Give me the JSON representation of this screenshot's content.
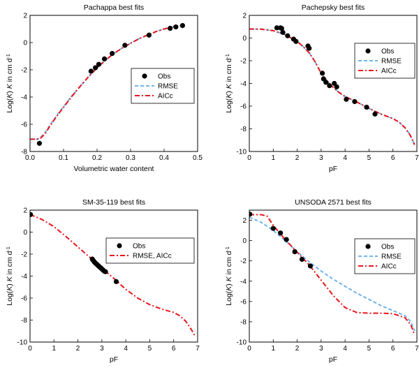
{
  "colors": {
    "obs": "#000000",
    "rmse": "#6fb4ec",
    "aicc": "#e8141b",
    "axis": "#000000"
  },
  "chart_data": [
    {
      "type": "scatter",
      "title": "Pachappa best fits",
      "xlabel": "Volumetric water content",
      "ylabel_parts": [
        "Log(",
        "K",
        ") ",
        "K",
        " in cm d",
        "-1"
      ],
      "xlim": [
        0,
        0.5
      ],
      "ylim": [
        -8,
        2
      ],
      "xticks": [
        0,
        0.1,
        0.2,
        0.3,
        0.4,
        0.5
      ],
      "xtick_labels": [
        "0.0",
        "0.1",
        "0.2",
        "0.3",
        "0.4",
        "0.5"
      ],
      "yticks": [
        -8,
        -6,
        -4,
        -2,
        0,
        2
      ],
      "ytick_labels": [
        "-8",
        "-6",
        "-4",
        "-2",
        "0",
        "2"
      ],
      "legend": {
        "position": "center-right",
        "entries": [
          "Obs",
          "RMSE",
          "AICc"
        ]
      },
      "series": [
        {
          "name": "Obs",
          "kind": "points",
          "x": [
            0.028,
            0.182,
            0.195,
            0.205,
            0.222,
            0.245,
            0.283,
            0.355,
            0.418,
            0.435,
            0.455
          ],
          "y": [
            -7.4,
            -2.1,
            -1.85,
            -1.6,
            -1.2,
            -0.8,
            -0.2,
            0.55,
            1.05,
            1.15,
            1.25
          ]
        },
        {
          "name": "RMSE",
          "kind": "dashed",
          "x": [
            0.0,
            0.02,
            0.03,
            0.045,
            0.06,
            0.08,
            0.1,
            0.125,
            0.15,
            0.175,
            0.2,
            0.225,
            0.25,
            0.275,
            0.3,
            0.325,
            0.35,
            0.375,
            0.4,
            0.425,
            0.45,
            0.46
          ],
          "y": [
            -7.1,
            -7.1,
            -7.0,
            -6.6,
            -6.05,
            -5.35,
            -4.7,
            -3.9,
            -3.2,
            -2.5,
            -1.85,
            -1.3,
            -0.8,
            -0.4,
            -0.05,
            0.28,
            0.55,
            0.8,
            1.0,
            1.15,
            1.25,
            1.3
          ]
        },
        {
          "name": "AICc",
          "kind": "dashdot",
          "x": [
            0.0,
            0.02,
            0.03,
            0.045,
            0.06,
            0.08,
            0.1,
            0.125,
            0.15,
            0.175,
            0.2,
            0.225,
            0.25,
            0.275,
            0.3,
            0.325,
            0.35,
            0.375,
            0.4,
            0.425,
            0.45,
            0.46
          ],
          "y": [
            -7.1,
            -7.1,
            -7.05,
            -6.7,
            -6.1,
            -5.4,
            -4.75,
            -3.95,
            -3.2,
            -2.5,
            -1.85,
            -1.3,
            -0.8,
            -0.4,
            -0.05,
            0.28,
            0.55,
            0.8,
            1.0,
            1.15,
            1.25,
            1.3
          ]
        }
      ]
    },
    {
      "type": "scatter",
      "title": "Pachepsky best fits",
      "xlabel": "pF",
      "ylabel_parts": [
        "Log(",
        "K",
        ") ",
        "K",
        " in cm d",
        "-1"
      ],
      "xlim": [
        0,
        7
      ],
      "ylim": [
        -10,
        2
      ],
      "xticks": [
        0,
        1,
        2,
        3,
        4,
        5,
        6,
        7
      ],
      "xtick_labels": [
        "0",
        "1",
        "2",
        "3",
        "4",
        "5",
        "6",
        "7"
      ],
      "yticks": [
        -10,
        -8,
        -6,
        -4,
        -2,
        0,
        2
      ],
      "ytick_labels": [
        "-10",
        "-8",
        "-6",
        "-4",
        "-2",
        "0",
        "2"
      ],
      "legend": {
        "position": "top-right",
        "entries": [
          "Obs",
          "RMSE",
          "AICc"
        ]
      },
      "series": [
        {
          "name": "Obs",
          "kind": "points",
          "x": [
            1.15,
            1.3,
            1.35,
            1.4,
            1.6,
            1.85,
            1.95,
            2.45,
            2.5,
            3.05,
            3.1,
            3.2,
            3.35,
            3.55,
            3.65,
            4.05,
            4.4,
            4.9,
            5.25
          ],
          "y": [
            0.9,
            0.9,
            0.85,
            0.5,
            0.2,
            -0.1,
            -0.3,
            -0.7,
            -0.9,
            -3.1,
            -3.6,
            -3.9,
            -4.2,
            -4.0,
            -4.3,
            -5.4,
            -5.6,
            -6.1,
            -6.7
          ]
        },
        {
          "name": "RMSE",
          "kind": "dashed",
          "x": [
            0,
            0.5,
            1.0,
            1.5,
            2.0,
            2.25,
            2.5,
            2.75,
            3.0,
            3.25,
            3.5,
            3.75,
            4.0,
            4.5,
            5.0,
            5.5,
            6.0,
            6.25,
            6.5,
            6.7,
            6.8,
            6.9
          ],
          "y": [
            0.8,
            0.78,
            0.65,
            0.3,
            -0.3,
            -0.75,
            -1.3,
            -2.1,
            -3.1,
            -3.8,
            -4.35,
            -4.8,
            -5.15,
            -5.65,
            -6.2,
            -6.7,
            -7.1,
            -7.4,
            -7.9,
            -8.5,
            -8.9,
            -9.4
          ]
        },
        {
          "name": "AICc",
          "kind": "dashdot",
          "x": [
            0,
            0.5,
            1.0,
            1.5,
            2.0,
            2.25,
            2.5,
            2.75,
            3.0,
            3.25,
            3.5,
            3.75,
            4.0,
            4.5,
            5.0,
            5.5,
            6.0,
            6.25,
            6.5,
            6.7,
            6.8,
            6.9
          ],
          "y": [
            0.8,
            0.78,
            0.65,
            0.3,
            -0.3,
            -0.75,
            -1.3,
            -2.1,
            -3.1,
            -3.8,
            -4.35,
            -4.8,
            -5.15,
            -5.65,
            -6.2,
            -6.7,
            -7.1,
            -7.4,
            -7.9,
            -8.5,
            -8.9,
            -9.4
          ]
        }
      ]
    },
    {
      "type": "scatter",
      "title": "SM-35-119 best fits",
      "xlabel": "pF",
      "ylabel_parts": [
        "Log(",
        "K",
        ") ",
        "K",
        " in cm d",
        "-1"
      ],
      "xlim": [
        0,
        7
      ],
      "ylim": [
        -10,
        2
      ],
      "xticks": [
        0,
        1,
        2,
        3,
        4,
        5,
        6,
        7
      ],
      "xtick_labels": [
        "0",
        "1",
        "2",
        "3",
        "4",
        "5",
        "6",
        "7"
      ],
      "yticks": [
        -10,
        -8,
        -6,
        -4,
        -2,
        0,
        2
      ],
      "ytick_labels": [
        "-10",
        "-8",
        "-6",
        "-4",
        "-2",
        "0",
        "2"
      ],
      "legend": {
        "position": "top-right",
        "entries": [
          "Obs",
          "RMSE, AICc"
        ]
      },
      "series": [
        {
          "name": "Obs",
          "kind": "points",
          "x": [
            0.02,
            2.6,
            2.65,
            2.7,
            2.75,
            2.8,
            2.85,
            2.9,
            2.95,
            3.0,
            3.05,
            3.1,
            3.15,
            3.6
          ],
          "y": [
            1.6,
            -2.45,
            -2.6,
            -2.75,
            -2.85,
            -2.95,
            -3.05,
            -3.15,
            -3.25,
            -3.35,
            -3.45,
            -3.55,
            -3.6,
            -4.5
          ]
        },
        {
          "name": "RMSE, AICc",
          "kind": "dashdot",
          "x": [
            0,
            0.5,
            1.0,
            1.5,
            2.0,
            2.5,
            3.0,
            3.5,
            4.0,
            4.5,
            5.0,
            5.5,
            6.0,
            6.25,
            6.5,
            6.75,
            6.9
          ],
          "y": [
            1.6,
            1.15,
            0.5,
            -0.4,
            -1.35,
            -2.3,
            -3.3,
            -4.2,
            -5.2,
            -6.0,
            -6.6,
            -7.0,
            -7.3,
            -7.6,
            -8.1,
            -8.9,
            -9.5
          ]
        }
      ]
    },
    {
      "type": "scatter",
      "title": "UNSODA 2571 best fits",
      "xlabel": "pF",
      "ylabel_parts": [
        "Log(",
        "K",
        ") ",
        "K",
        " in cm d",
        "-1"
      ],
      "xlim": [
        0,
        7
      ],
      "ylim": [
        -10,
        3
      ],
      "xticks": [
        0,
        1,
        2,
        3,
        4,
        5,
        6,
        7
      ],
      "xtick_labels": [
        "0",
        "1",
        "2",
        "3",
        "4",
        "5",
        "6",
        "7"
      ],
      "yticks": [
        -10,
        -8,
        -6,
        -4,
        -2,
        0,
        2
      ],
      "ytick_labels": [
        "-10",
        "-8",
        "-6",
        "-4",
        "-2",
        "0",
        "2"
      ],
      "legend": {
        "position": "top-right",
        "entries": [
          "Obs",
          "RMSE",
          "AICc"
        ]
      },
      "series": [
        {
          "name": "Obs",
          "kind": "points",
          "x": [
            0.02,
            1.0,
            1.3,
            1.55,
            1.9,
            2.2,
            2.55
          ],
          "y": [
            2.6,
            1.2,
            0.75,
            0.1,
            -1.1,
            -1.85,
            -2.5
          ]
        },
        {
          "name": "RMSE",
          "kind": "dashed",
          "x": [
            0,
            0.5,
            1.0,
            1.5,
            2.0,
            2.5,
            3.0,
            3.5,
            4.0,
            4.5,
            5.0,
            5.5,
            6.0,
            6.5,
            6.75,
            6.9
          ],
          "y": [
            2.3,
            1.8,
            1.0,
            0.0,
            -1.1,
            -2.1,
            -3.0,
            -3.8,
            -4.5,
            -5.2,
            -5.8,
            -6.4,
            -6.9,
            -7.4,
            -8.0,
            -8.9
          ]
        },
        {
          "name": "AICc",
          "kind": "dashdot",
          "x": [
            0,
            0.5,
            0.75,
            1.0,
            1.5,
            2.0,
            2.5,
            3.0,
            3.5,
            4.0,
            4.5,
            5.0,
            5.5,
            6.0,
            6.5,
            6.75,
            6.9
          ],
          "y": [
            2.55,
            2.55,
            2.4,
            1.5,
            0.1,
            -1.15,
            -2.4,
            -3.9,
            -5.4,
            -6.6,
            -7.1,
            -7.15,
            -7.15,
            -7.2,
            -7.6,
            -8.3,
            -9.3
          ]
        }
      ]
    }
  ]
}
